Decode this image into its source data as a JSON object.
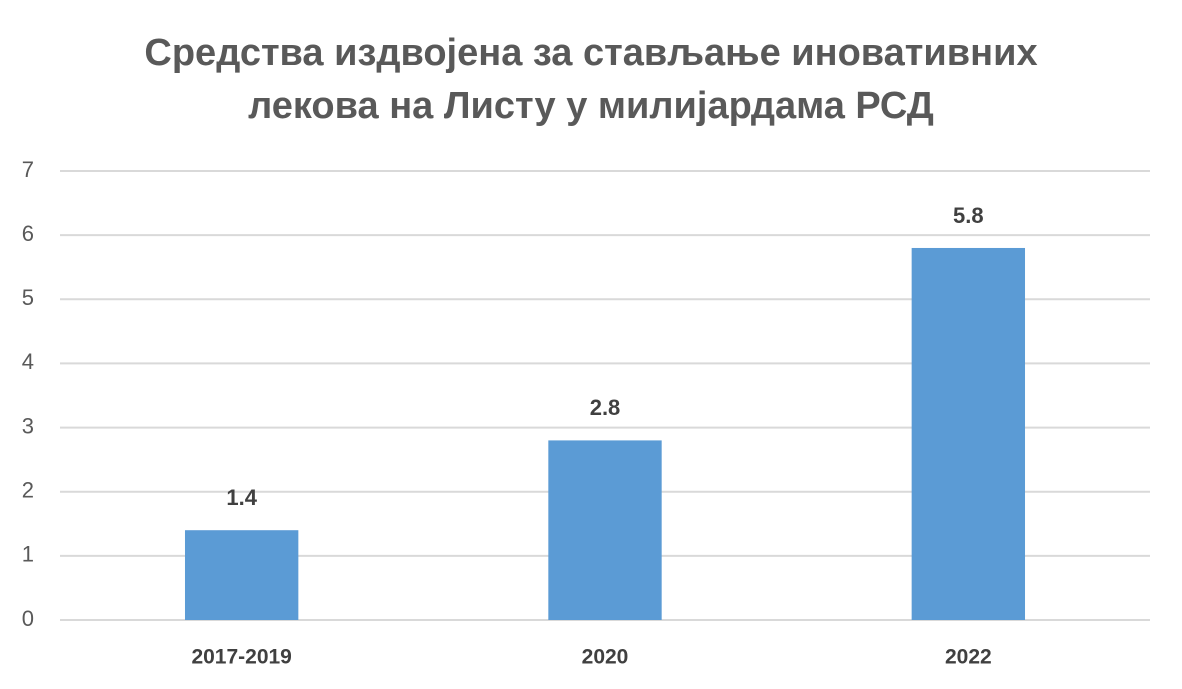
{
  "chart_data": {
    "type": "bar",
    "title": [
      "Средства издвојена за стављање иновативних",
      "лекова на Листу у милијардама РСД"
    ],
    "categories": [
      "2017-2019",
      "2020",
      "2022"
    ],
    "values": [
      1.4,
      2.8,
      5.8
    ],
    "color": "#5b9bd5",
    "ylim": [
      0,
      7
    ],
    "yticks": [
      0,
      1,
      2,
      3,
      4,
      5,
      6,
      7
    ],
    "grid": true
  }
}
